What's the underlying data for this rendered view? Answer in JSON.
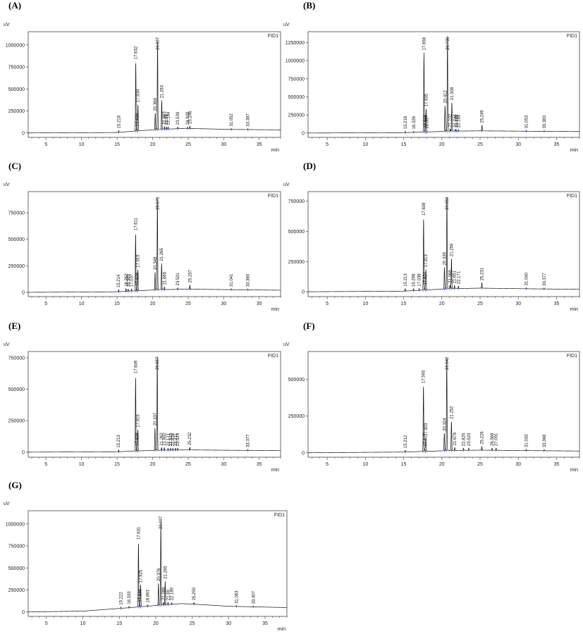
{
  "chart_data": [
    {
      "type": "line",
      "panel_label": "(A)",
      "detector": "FID1",
      "y_unit": "uV",
      "x_unit": "min",
      "xlim": [
        2.5,
        38
      ],
      "ylim": [
        -50000,
        1150000
      ],
      "x_ticks": [
        5,
        10,
        15,
        20,
        25,
        30,
        35
      ],
      "y_ticks": [
        0,
        250000,
        500000,
        750000,
        1000000
      ],
      "y_tick_labels": [
        "0",
        "250000",
        "500000",
        "750000",
        "1000000"
      ],
      "baseline": [
        [
          2.5,
          0
        ],
        [
          15,
          5000
        ],
        [
          18,
          25000
        ],
        [
          21,
          40000
        ],
        [
          24,
          50000
        ],
        [
          27,
          48000
        ],
        [
          31,
          40000
        ],
        [
          38,
          35000
        ]
      ],
      "peaks": [
        {
          "rt": 15.218,
          "label": "15.218",
          "height": 20000
        },
        {
          "rt": 17.632,
          "label": "17.632",
          "height": 790000
        },
        {
          "rt": 17.839,
          "label": "17.839",
          "height": 30000
        },
        {
          "rt": 17.934,
          "label": "17.934",
          "height": 300000
        },
        {
          "rt": 20.369,
          "label": "20.369",
          "height": 190000
        },
        {
          "rt": 20.697,
          "label": "20.697",
          "height": 1000000
        },
        {
          "rt": 21.283,
          "label": "21.283",
          "height": 330000
        },
        {
          "rt": 21.663,
          "label": "21.663",
          "height": 30000
        },
        {
          "rt": 21.95,
          "label": "21.95",
          "height": 25000
        },
        {
          "rt": 22.184,
          "label": "22.184",
          "height": 25000
        },
        {
          "rt": 23.539,
          "label": "23.539",
          "height": 20000
        },
        {
          "rt": 24.909,
          "label": "24.909",
          "height": 20000
        },
        {
          "rt": 25.246,
          "label": "25.246",
          "height": 30000
        },
        {
          "rt": 31.052,
          "label": "31.052",
          "height": 10000
        },
        {
          "rt": 33.387,
          "label": "33.387",
          "height": 10000
        }
      ]
    },
    {
      "type": "line",
      "panel_label": "(B)",
      "detector": "FID1",
      "y_unit": "uV",
      "x_unit": "min",
      "xlim": [
        2.5,
        38
      ],
      "ylim": [
        -60000,
        1400000
      ],
      "x_ticks": [
        5,
        10,
        15,
        20,
        25,
        30,
        35
      ],
      "y_ticks": [
        0,
        250000,
        500000,
        750000,
        1000000,
        1250000
      ],
      "y_tick_labels": [
        "0",
        "250000",
        "500000",
        "750000",
        "1000000",
        "1250000"
      ],
      "baseline": [
        [
          2.5,
          0
        ],
        [
          15,
          5000
        ],
        [
          18,
          15000
        ],
        [
          21,
          25000
        ],
        [
          25,
          30000
        ],
        [
          31,
          25000
        ],
        [
          38,
          20000
        ]
      ],
      "peaks": [
        {
          "rt": 15.216,
          "label": "15.216",
          "height": 20000
        },
        {
          "rt": 16.326,
          "label": "16.326",
          "height": 15000
        },
        {
          "rt": 17.658,
          "label": "17.658",
          "height": 1100000
        },
        {
          "rt": 17.846,
          "label": "17.846",
          "height": 30000
        },
        {
          "rt": 17.935,
          "label": "17.935",
          "height": 320000
        },
        {
          "rt": 18.037,
          "label": "18.037",
          "height": 15000
        },
        {
          "rt": 20.412,
          "label": "20.412",
          "height": 360000
        },
        {
          "rt": 20.735,
          "label": "20.735",
          "height": 1330000
        },
        {
          "rt": 21.102,
          "label": "21.102",
          "height": 30000
        },
        {
          "rt": 21.308,
          "label": "21.308",
          "height": 400000
        },
        {
          "rt": 21.746,
          "label": "21.746",
          "height": 25000
        },
        {
          "rt": 21.895,
          "label": "21.895",
          "height": 20000
        },
        {
          "rt": 22.185,
          "label": "22.185",
          "height": 20000
        },
        {
          "rt": 25.249,
          "label": "25.249",
          "height": 80000
        },
        {
          "rt": 31.053,
          "label": "31.053",
          "height": 10000
        },
        {
          "rt": 33.383,
          "label": "33.383",
          "height": 10000
        }
      ]
    },
    {
      "type": "line",
      "panel_label": "(C)",
      "detector": "FID1",
      "y_unit": "uV",
      "x_unit": "min",
      "xlim": [
        2.5,
        38
      ],
      "ylim": [
        -40000,
        950000
      ],
      "x_ticks": [
        5,
        10,
        15,
        20,
        25,
        30,
        35
      ],
      "y_ticks": [
        0,
        250000,
        500000,
        750000
      ],
      "y_tick_labels": [
        "0",
        "250000",
        "500000",
        "750000"
      ],
      "baseline": [
        [
          2.5,
          0
        ],
        [
          15,
          5000
        ],
        [
          18,
          15000
        ],
        [
          21,
          25000
        ],
        [
          25,
          30000
        ],
        [
          31,
          25000
        ],
        [
          38,
          20000
        ]
      ],
      "peaks": [
        {
          "rt": 15.214,
          "label": "15.214",
          "height": 20000
        },
        {
          "rt": 16.262,
          "label": "16.262",
          "height": 25000
        },
        {
          "rt": 16.569,
          "label": "16.569",
          "height": 20000
        },
        {
          "rt": 17.037,
          "label": "17.037",
          "height": 20000
        },
        {
          "rt": 17.611,
          "label": "17.611",
          "height": 550000
        },
        {
          "rt": 17.826,
          "label": "17.826",
          "height": 30000
        },
        {
          "rt": 17.915,
          "label": "17.915",
          "height": 200000
        },
        {
          "rt": 20.348,
          "label": "20.348",
          "height": 170000
        },
        {
          "rt": 20.675,
          "label": "20.675",
          "height": 870000
        },
        {
          "rt": 21.265,
          "label": "21.265",
          "height": 250000
        },
        {
          "rt": 21.665,
          "label": "21.665",
          "height": 25000
        },
        {
          "rt": 23.531,
          "label": "23.531",
          "height": 15000
        },
        {
          "rt": 25.237,
          "label": "25.237",
          "height": 40000
        },
        {
          "rt": 31.041,
          "label": "31.041",
          "height": 8000
        },
        {
          "rt": 33.38,
          "label": "33.380",
          "height": 8000
        }
      ]
    },
    {
      "type": "line",
      "panel_label": "(D)",
      "detector": "FID1",
      "y_unit": "uV",
      "x_unit": "min",
      "xlim": [
        2.5,
        38
      ],
      "ylim": [
        -40000,
        830000
      ],
      "x_ticks": [
        5,
        10,
        15,
        20,
        25,
        30,
        35
      ],
      "y_ticks": [
        0,
        250000,
        500000,
        750000
      ],
      "y_tick_labels": [
        "0",
        "250000",
        "500000",
        "750000"
      ],
      "baseline": [
        [
          2.5,
          0
        ],
        [
          15,
          5000
        ],
        [
          18,
          15000
        ],
        [
          21,
          25000
        ],
        [
          25,
          30000
        ],
        [
          31,
          25000
        ],
        [
          38,
          20000
        ]
      ],
      "peaks": [
        {
          "rt": 15.213,
          "label": "15.213",
          "height": 20000
        },
        {
          "rt": 16.298,
          "label": "16.298",
          "height": 15000
        },
        {
          "rt": 17.036,
          "label": "17.036",
          "height": 15000
        },
        {
          "rt": 17.608,
          "label": "17.608",
          "height": 600000
        },
        {
          "rt": 17.824,
          "label": "17.824",
          "height": 25000
        },
        {
          "rt": 17.913,
          "label": "17.913",
          "height": 170000
        },
        {
          "rt": 20.339,
          "label": "20.339",
          "height": 180000
        },
        {
          "rt": 20.659,
          "label": "20.659",
          "height": 760000
        },
        {
          "rt": 21.066,
          "label": "21.066",
          "height": 30000
        },
        {
          "rt": 21.259,
          "label": "21.259",
          "height": 250000
        },
        {
          "rt": 21.651,
          "label": "21.651",
          "height": 25000
        },
        {
          "rt": 22.171,
          "label": "22.171",
          "height": 20000
        },
        {
          "rt": 25.231,
          "label": "25.231",
          "height": 45000
        },
        {
          "rt": 31.04,
          "label": "31.040",
          "height": 8000
        },
        {
          "rt": 33.377,
          "label": "33.377",
          "height": 8000
        }
      ]
    },
    {
      "type": "line",
      "panel_label": "(E)",
      "detector": "FID1",
      "y_unit": "uV",
      "x_unit": "min",
      "xlim": [
        2.5,
        38
      ],
      "ylim": [
        -40000,
        800000
      ],
      "x_ticks": [
        5,
        10,
        15,
        20,
        25,
        30,
        35
      ],
      "y_ticks": [
        0,
        250000,
        500000,
        750000
      ],
      "y_tick_labels": [
        "0",
        "250000",
        "500000",
        "750000"
      ],
      "baseline": [
        [
          2.5,
          0
        ],
        [
          15,
          3000
        ],
        [
          18,
          10000
        ],
        [
          21,
          15000
        ],
        [
          25,
          18000
        ],
        [
          31,
          15000
        ],
        [
          38,
          12000
        ]
      ],
      "peaks": [
        {
          "rt": 15.213,
          "label": "15.213",
          "height": 15000
        },
        {
          "rt": 17.609,
          "label": "17.609",
          "height": 600000
        },
        {
          "rt": 17.826,
          "label": "17.826",
          "height": 25000
        },
        {
          "rt": 17.915,
          "label": "17.915",
          "height": 170000
        },
        {
          "rt": 20.337,
          "label": "20.337",
          "height": 180000
        },
        {
          "rt": 20.657,
          "label": "20.657",
          "height": 750000
        },
        {
          "rt": 21.652,
          "label": "21.652",
          "height": 20000
        },
        {
          "rt": 21.262,
          "label": "21.262",
          "height": 20000
        },
        {
          "rt": 22.171,
          "label": "22.171",
          "height": 15000
        },
        {
          "rt": 22.52,
          "label": "22.520",
          "height": 15000
        },
        {
          "rt": 22.836,
          "label": "22.836",
          "height": 15000
        },
        {
          "rt": 23.211,
          "label": "23.211",
          "height": 15000
        },
        {
          "rt": 23.524,
          "label": "23.524",
          "height": 15000
        },
        {
          "rt": 25.232,
          "label": "25.232",
          "height": 20000
        },
        {
          "rt": 33.377,
          "label": "33.377",
          "height": 8000
        }
      ]
    },
    {
      "type": "line",
      "panel_label": "(F)",
      "detector": "FID1",
      "y_unit": "uV",
      "x_unit": "min",
      "xlim": [
        2.5,
        38
      ],
      "ylim": [
        -30000,
        690000
      ],
      "x_ticks": [
        5,
        10,
        15,
        20,
        25,
        30,
        35
      ],
      "y_ticks": [
        0,
        250000,
        500000
      ],
      "y_tick_labels": [
        "0",
        "250000",
        "500000"
      ],
      "baseline": [
        [
          2.5,
          0
        ],
        [
          15,
          5000
        ],
        [
          18,
          10000
        ],
        [
          21,
          15000
        ],
        [
          25,
          18000
        ],
        [
          31,
          15000
        ],
        [
          38,
          12000
        ]
      ],
      "peaks": [
        {
          "rt": 15.212,
          "label": "15.212",
          "height": 12000
        },
        {
          "rt": 17.593,
          "label": "17.593",
          "height": 450000
        },
        {
          "rt": 17.817,
          "label": "17.817",
          "height": 20000
        },
        {
          "rt": 17.903,
          "label": "17.903",
          "height": 90000
        },
        {
          "rt": 20.324,
          "label": "20.324",
          "height": 120000
        },
        {
          "rt": 20.642,
          "label": "20.642",
          "height": 630000
        },
        {
          "rt": 21.252,
          "label": "21.252",
          "height": 200000
        },
        {
          "rt": 21.678,
          "label": "21.678",
          "height": 20000
        },
        {
          "rt": 22.825,
          "label": "22.825",
          "height": 15000
        },
        {
          "rt": 23.523,
          "label": "23.523",
          "height": 15000
        },
        {
          "rt": 25.226,
          "label": "25.226",
          "height": 25000
        },
        {
          "rt": 26.568,
          "label": "26.568",
          "height": 15000
        },
        {
          "rt": 27.091,
          "label": "27.091",
          "height": 15000
        },
        {
          "rt": 31.033,
          "label": "31.033",
          "height": 8000
        },
        {
          "rt": 33.368,
          "label": "33.368",
          "height": 8000
        }
      ]
    },
    {
      "type": "line",
      "panel_label": "(G)",
      "detector": "FID1",
      "y_unit": "uV",
      "x_unit": "min",
      "xlim": [
        2.5,
        38
      ],
      "ylim": [
        -50000,
        1150000
      ],
      "x_ticks": [
        5,
        10,
        15,
        20,
        25,
        30,
        35
      ],
      "y_ticks": [
        0,
        250000,
        500000,
        750000,
        1000000
      ],
      "y_tick_labels": [
        "0",
        "250000",
        "500000",
        "750000",
        "1000000"
      ],
      "baseline": [
        [
          2.5,
          0
        ],
        [
          10,
          10000
        ],
        [
          15,
          40000
        ],
        [
          18,
          60000
        ],
        [
          21,
          80000
        ],
        [
          23.5,
          95000
        ],
        [
          26,
          85000
        ],
        [
          30,
          65000
        ],
        [
          38,
          50000
        ]
      ],
      "peaks": [
        {
          "rt": 15.222,
          "label": "15.222",
          "height": 15000
        },
        {
          "rt": 16.333,
          "label": "16.333",
          "height": 15000
        },
        {
          "rt": 17.631,
          "label": "17.631",
          "height": 740000
        },
        {
          "rt": 17.836,
          "label": "17.836",
          "height": 30000
        },
        {
          "rt": 17.925,
          "label": "17.925",
          "height": 250000
        },
        {
          "rt": 18.893,
          "label": "18.893",
          "height": 15000
        },
        {
          "rt": 20.376,
          "label": "20.376",
          "height": 250000
        },
        {
          "rt": 20.697,
          "label": "20.697",
          "height": 940000
        },
        {
          "rt": 21.089,
          "label": "21.089",
          "height": 30000
        },
        {
          "rt": 21.295,
          "label": "21.295",
          "height": 270000
        },
        {
          "rt": 21.69,
          "label": "21.69",
          "height": 25000
        },
        {
          "rt": 22.189,
          "label": "22.189",
          "height": 20000
        },
        {
          "rt": 25.25,
          "label": "25.250",
          "height": 20000
        },
        {
          "rt": 31.063,
          "label": "31.063",
          "height": 8000
        },
        {
          "rt": 33.407,
          "label": "33.407",
          "height": 8000
        }
      ]
    }
  ]
}
